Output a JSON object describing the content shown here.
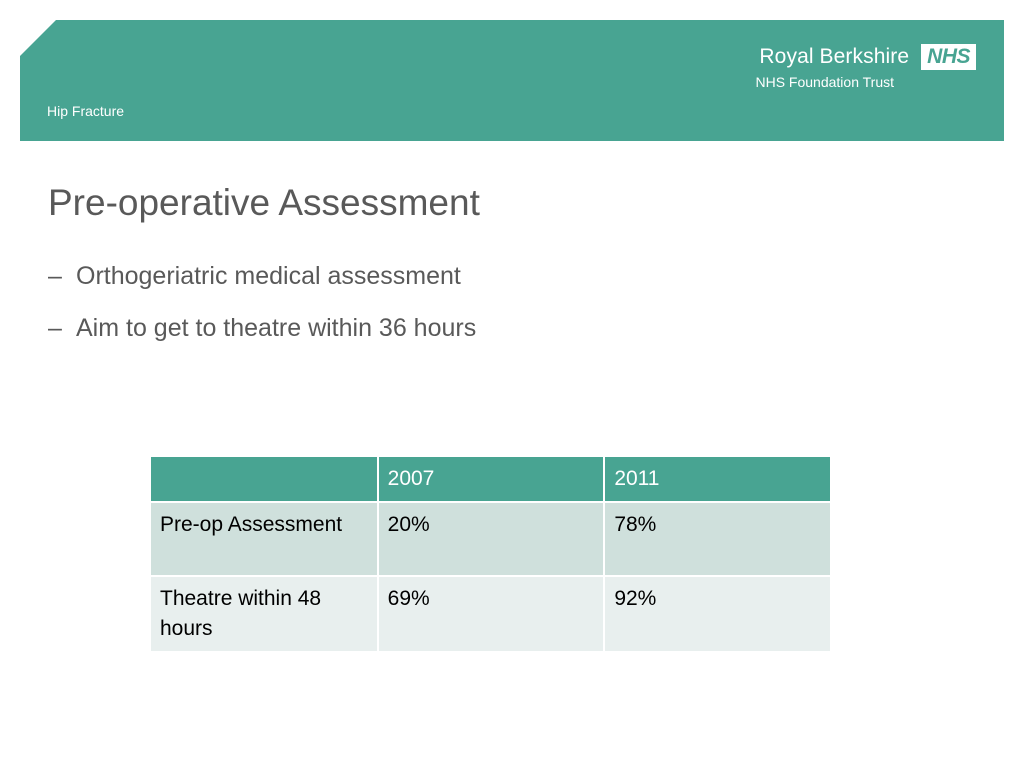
{
  "header": {
    "section": "Hip Fracture",
    "brand_name": "Royal Berkshire",
    "brand_logo": "NHS",
    "brand_sub": "NHS Foundation Trust"
  },
  "slide": {
    "title": "Pre-operative Assessment",
    "bullets": [
      {
        "marker": "–",
        "text": "Orthogeriatric medical assessment"
      },
      {
        "marker": "–",
        "text": "Aim to get to theatre within 36 hours"
      }
    ]
  },
  "table": {
    "headers": [
      "",
      "2007",
      "2011"
    ],
    "rows": [
      [
        "Pre-op Assessment",
        "20%",
        "78%"
      ],
      [
        "Theatre within 48 hours",
        "69%",
        "92%"
      ]
    ]
  },
  "colors": {
    "accent": "#48a492",
    "row_odd": "#cfe0dc",
    "row_even": "#e8efee",
    "text": "#595959"
  }
}
